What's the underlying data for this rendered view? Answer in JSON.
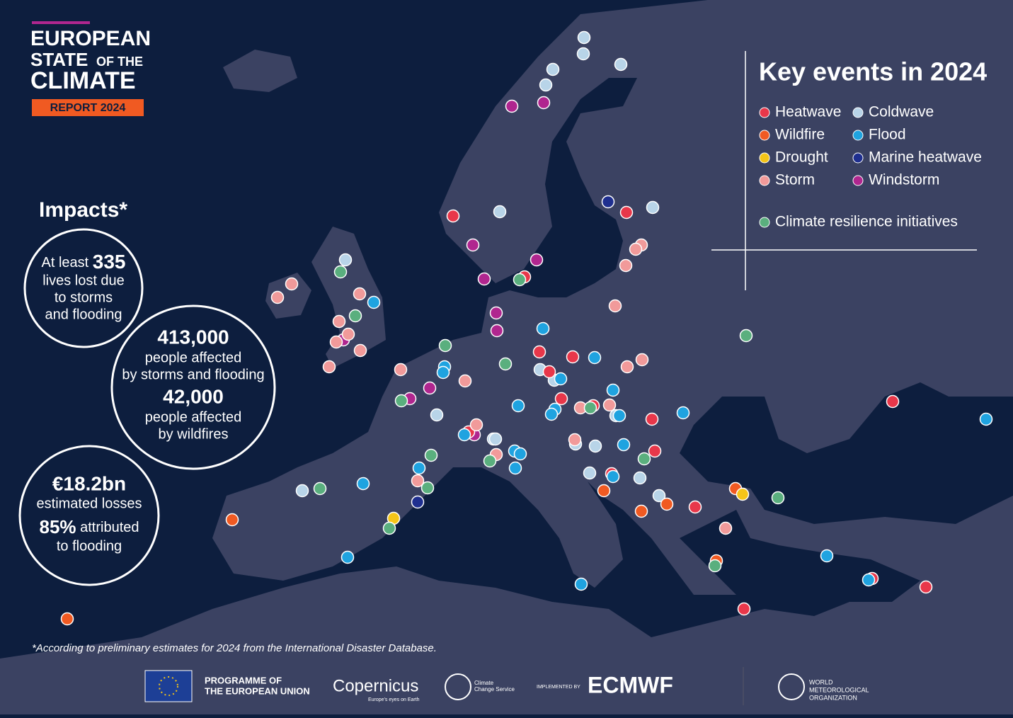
{
  "header": {
    "line1": "EUROPEAN",
    "line2a": "STATE",
    "line2b": "OF THE",
    "line3": "CLIMATE",
    "report": "REPORT 2024"
  },
  "legend": {
    "title": "Key events in 2024",
    "items": [
      {
        "label": "Heatwave",
        "color": "#e8374a"
      },
      {
        "label": "Wildfire",
        "color": "#f05a22"
      },
      {
        "label": "Drought",
        "color": "#f5c518"
      },
      {
        "label": "Storm",
        "color": "#f19a9a"
      },
      {
        "label": "Coldwave",
        "color": "#b8d4e8"
      },
      {
        "label": "Flood",
        "color": "#1fa3e0"
      },
      {
        "label": "Marine heatwave",
        "color": "#1f2f8f"
      },
      {
        "label": "Windstorm",
        "color": "#b0268f"
      },
      {
        "label": "Climate resilience initiatives",
        "color": "#5aaf7e"
      }
    ]
  },
  "impacts": {
    "title": "Impacts*",
    "c1": {
      "pre": "At least",
      "num": "335",
      "l1": "lives lost due",
      "l2": "to storms",
      "l3": "and flooding"
    },
    "c2": {
      "num1": "413,000",
      "l1": "people affected",
      "l2": "by storms and flooding",
      "num2": "42,000",
      "l3": "people affected",
      "l4": "by wildfires"
    },
    "c3": {
      "num1": "€18.2bn",
      "l1": "estimated losses",
      "num2": "85%",
      "l2": "attributed",
      "l3": "to flooding"
    }
  },
  "footnote": "*According to preliminary estimates for 2024 from the International Disaster Database.",
  "logos": {
    "eu1": "PROGRAMME OF",
    "eu2": "THE EUROPEAN UNION",
    "copernicus": "Copernicus",
    "copernicus_tag": "Europe's eyes on Earth",
    "c3s1": "Climate",
    "c3s2": "Change Service",
    "implemented": "IMPLEMENTED BY",
    "ecmwf": "ECMWF",
    "wmo1": "WORLD",
    "wmo2": "METEOROLOGICAL",
    "wmo3": "ORGANIZATION"
  }
}
